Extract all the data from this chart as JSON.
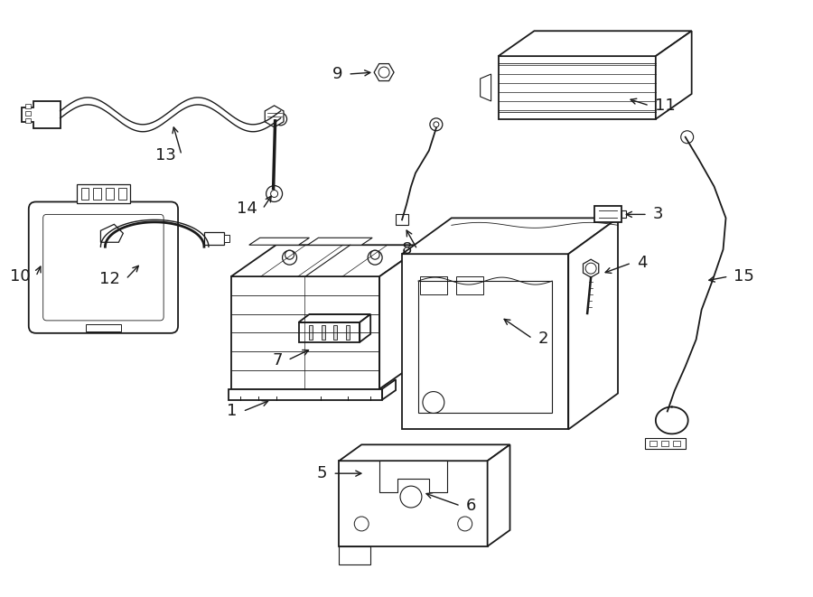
{
  "background_color": "#ffffff",
  "line_color": "#1a1a1a",
  "figure_width": 9.0,
  "figure_height": 6.61,
  "dpi": 100,
  "label_fontsize": 13,
  "arrow_fontsize": 11
}
